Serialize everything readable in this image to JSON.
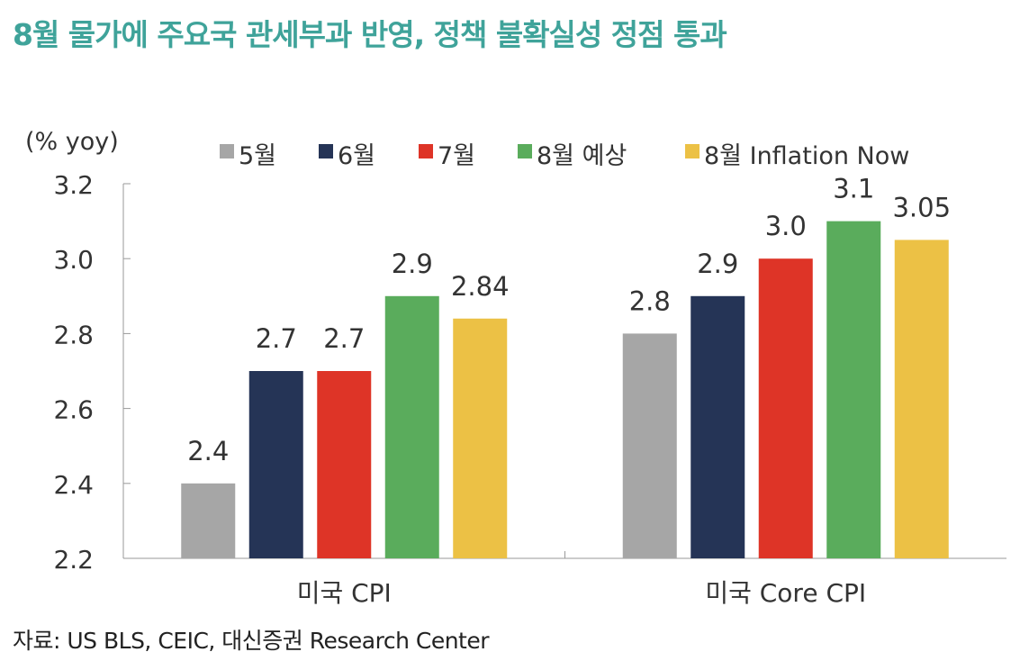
{
  "title": "8월 물가에 주요국 관세부과 반영, 정책 불확실성 정점 통과",
  "source": "자료: US BLS, CEIC, 대신증권 Research Center",
  "colors": {
    "title": "#3fa39a",
    "series": [
      "#a6a6a6",
      "#253456",
      "#de3427",
      "#5aac5c",
      "#ecc145"
    ]
  },
  "chart_data": {
    "type": "bar",
    "unit_label": "(% yoy)",
    "categories": [
      "미국 CPI",
      "미국 Core CPI"
    ],
    "series": [
      {
        "name": "5월",
        "values": [
          2.4,
          2.8
        ],
        "labels": [
          "2.4",
          "2.8"
        ]
      },
      {
        "name": "6월",
        "values": [
          2.7,
          2.9
        ],
        "labels": [
          "2.7",
          "2.9"
        ]
      },
      {
        "name": "7월",
        "values": [
          2.7,
          3.0
        ],
        "labels": [
          "2.7",
          "3.0"
        ]
      },
      {
        "name": "8월 예상",
        "values": [
          2.9,
          3.1
        ],
        "labels": [
          "2.9",
          "3.1"
        ]
      },
      {
        "name": "8월 Inflation Now",
        "values": [
          2.84,
          3.05
        ],
        "labels": [
          "2.84",
          "3.05"
        ]
      }
    ],
    "ylim": [
      2.2,
      3.2
    ],
    "yticks": [
      "2.2",
      "2.4",
      "2.6",
      "2.8",
      "3.0",
      "3.2"
    ],
    "legend": "top",
    "grid": false
  }
}
